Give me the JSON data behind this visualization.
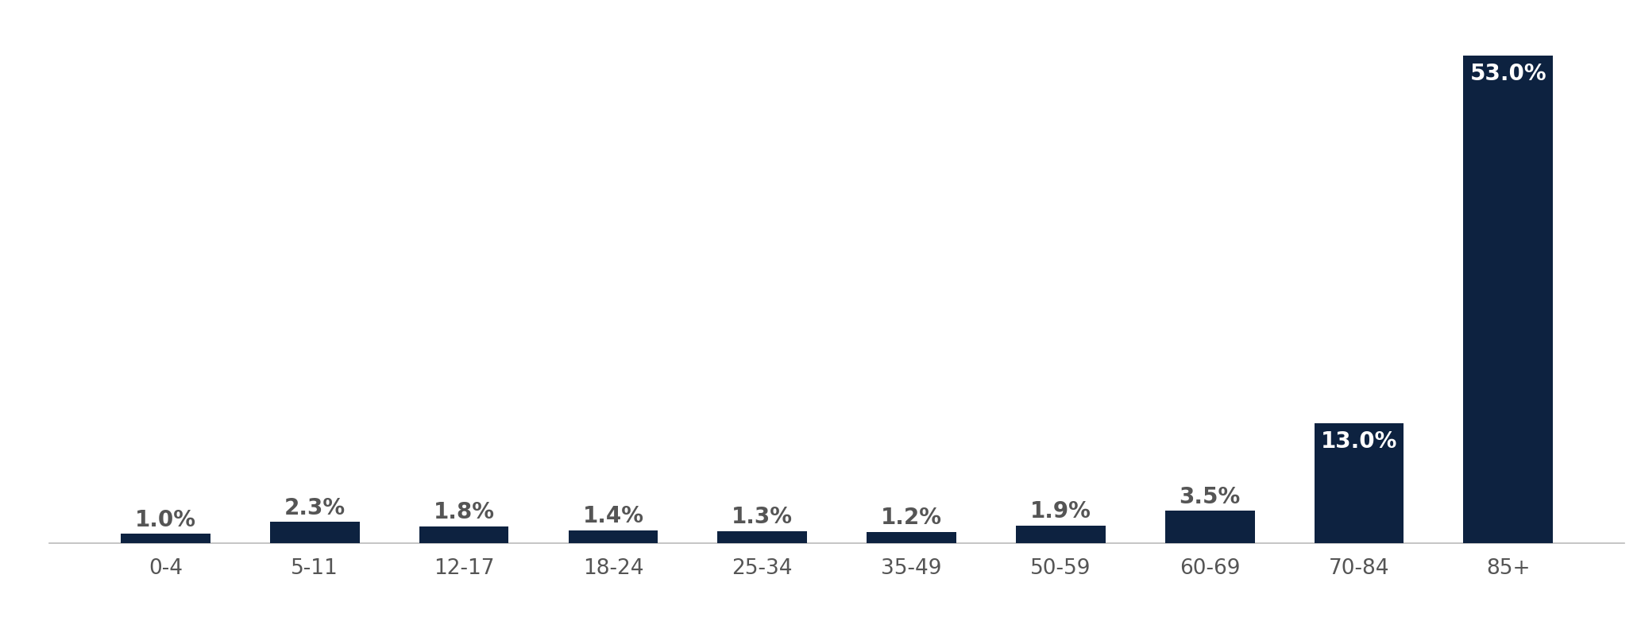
{
  "categories": [
    "0-4",
    "5-11",
    "12-17",
    "18-24",
    "25-34",
    "35-49",
    "50-59",
    "60-69",
    "70-84",
    "85+"
  ],
  "values": [
    1.0,
    2.3,
    1.8,
    1.4,
    1.3,
    1.2,
    1.9,
    3.5,
    13.0,
    53.0
  ],
  "bar_color": "#0d2240",
  "label_color_outside": "#555555",
  "label_color_inside": "#ffffff",
  "background_color": "#ffffff",
  "ylim": [
    0,
    57
  ],
  "label_fontsize": 20,
  "tick_fontsize": 19,
  "inside_threshold": 5.0,
  "bar_width": 0.6
}
